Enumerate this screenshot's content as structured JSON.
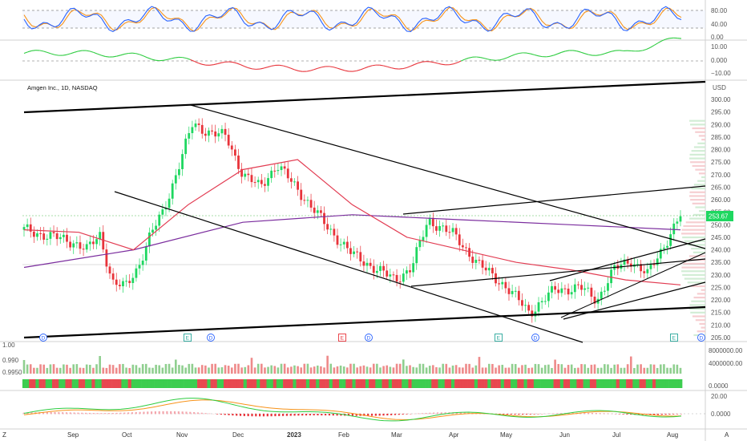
{
  "header": {
    "title": "Amgen Inc., 1D, NASDAQ",
    "currency": "USD",
    "last_price": "253.67"
  },
  "colors": {
    "up": "#1ed760",
    "down": "#e8333a",
    "ma_fast": "#e23c52",
    "ma_slow": "#7b2d9e",
    "stoch_k": "#2962ff",
    "stoch_d": "#f7931a",
    "trendline": "#000000",
    "volume_up": "#8fcf8f",
    "volume_down": "#ee8a8a"
  },
  "time_axis": {
    "months": [
      "Sep",
      "Oct",
      "Nov",
      "Dec",
      "2023",
      "Feb",
      "Mar",
      "Apr",
      "May",
      "Jun",
      "Jul",
      "Aug"
    ],
    "left_label": "Z",
    "right_label": "A"
  },
  "panels": {
    "stoch": {
      "ticks": [
        "80.00",
        "40.00",
        "0.00"
      ]
    },
    "momentum": {
      "ticks": [
        "10.00",
        "0.000",
        "−10.00"
      ]
    },
    "volume": {
      "left_ticks": [
        "1.00",
        "0.990",
        "0.9950"
      ],
      "right_ticks": [
        "8000000.00",
        "4000000.00",
        "0.0000"
      ]
    },
    "macd": {
      "ticks": [
        "20.00",
        "0.0000"
      ]
    }
  },
  "event_markers": [
    {
      "type": "D",
      "color": "#2962ff"
    },
    {
      "type": "E",
      "color": "#26a69a"
    },
    {
      "type": "D",
      "color": "#2962ff"
    },
    {
      "type": "E",
      "color": "#e8333a"
    },
    {
      "type": "D",
      "color": "#2962ff"
    },
    {
      "type": "E",
      "color": "#26a69a"
    },
    {
      "type": "D",
      "color": "#2962ff"
    },
    {
      "type": "E",
      "color": "#26a69a"
    },
    {
      "type": "D",
      "color": "#2962ff"
    }
  ],
  "chart_data": {
    "type": "candlestick",
    "title": "Amgen Inc., 1D, NASDAQ",
    "x": [
      "Sep",
      "Oct",
      "Nov",
      "Dec",
      "2023",
      "Feb",
      "Mar",
      "Apr",
      "May",
      "Jun",
      "Jul",
      "Aug"
    ],
    "ylim": [
      205,
      300
    ],
    "yticks": [
      300,
      295,
      290,
      285,
      280,
      275,
      270,
      265,
      260,
      255,
      250,
      245,
      240,
      235,
      230,
      225,
      220,
      215,
      210,
      205
    ],
    "close_path": [
      {
        "x": "Aug",
        "y": 248
      },
      {
        "x": "Sep",
        "y": 243
      },
      {
        "x": "Sep",
        "y": 240
      },
      {
        "x": "Sep",
        "y": 246
      },
      {
        "x": "Sep",
        "y": 227
      },
      {
        "x": "Oct",
        "y": 225
      },
      {
        "x": "Oct",
        "y": 233
      },
      {
        "x": "Oct",
        "y": 246
      },
      {
        "x": "Oct",
        "y": 255
      },
      {
        "x": "Nov",
        "y": 270
      },
      {
        "x": "Nov",
        "y": 290
      },
      {
        "x": "Nov",
        "y": 287
      },
      {
        "x": "Dec",
        "y": 285
      },
      {
        "x": "Dec",
        "y": 270
      },
      {
        "x": "Dec",
        "y": 265
      },
      {
        "x": "2023",
        "y": 274
      },
      {
        "x": "2023",
        "y": 262
      },
      {
        "x": "Feb",
        "y": 249
      },
      {
        "x": "Feb",
        "y": 238
      },
      {
        "x": "Mar",
        "y": 232
      },
      {
        "x": "Mar",
        "y": 228
      },
      {
        "x": "Mar",
        "y": 233
      },
      {
        "x": "Apr",
        "y": 252
      },
      {
        "x": "Apr",
        "y": 246
      },
      {
        "x": "May",
        "y": 234
      },
      {
        "x": "May",
        "y": 226
      },
      {
        "x": "Jun",
        "y": 215
      },
      {
        "x": "Jun",
        "y": 224
      },
      {
        "x": "Jul",
        "y": 225
      },
      {
        "x": "Jul",
        "y": 220
      },
      {
        "x": "Jul",
        "y": 232
      },
      {
        "x": "Aug",
        "y": 236
      },
      {
        "x": "Aug",
        "y": 230
      },
      {
        "x": "Aug",
        "y": 253.67
      }
    ],
    "moving_average_fast_path": [
      {
        "x": "Aug",
        "y": 248
      },
      {
        "x": "Sep",
        "y": 247
      },
      {
        "x": "Oct",
        "y": 240
      },
      {
        "x": "Nov",
        "y": 258
      },
      {
        "x": "Dec",
        "y": 272
      },
      {
        "x": "2023",
        "y": 276
      },
      {
        "x": "Feb",
        "y": 258
      },
      {
        "x": "Mar",
        "y": 245
      },
      {
        "x": "Apr",
        "y": 240
      },
      {
        "x": "May",
        "y": 235
      },
      {
        "x": "Jun",
        "y": 232
      },
      {
        "x": "Jul",
        "y": 228
      },
      {
        "x": "Aug",
        "y": 226
      }
    ],
    "moving_average_slow_path": [
      {
        "x": "Aug",
        "y": 233
      },
      {
        "x": "Oct",
        "y": 240
      },
      {
        "x": "Dec",
        "y": 251
      },
      {
        "x": "Feb",
        "y": 254
      },
      {
        "x": "Apr",
        "y": 252
      },
      {
        "x": "Jun",
        "y": 250
      },
      {
        "x": "Aug",
        "y": 248
      }
    ],
    "trendlines": 10,
    "annotation": {
      "price": 253.67
    },
    "legend": "top-left",
    "grid": false
  }
}
